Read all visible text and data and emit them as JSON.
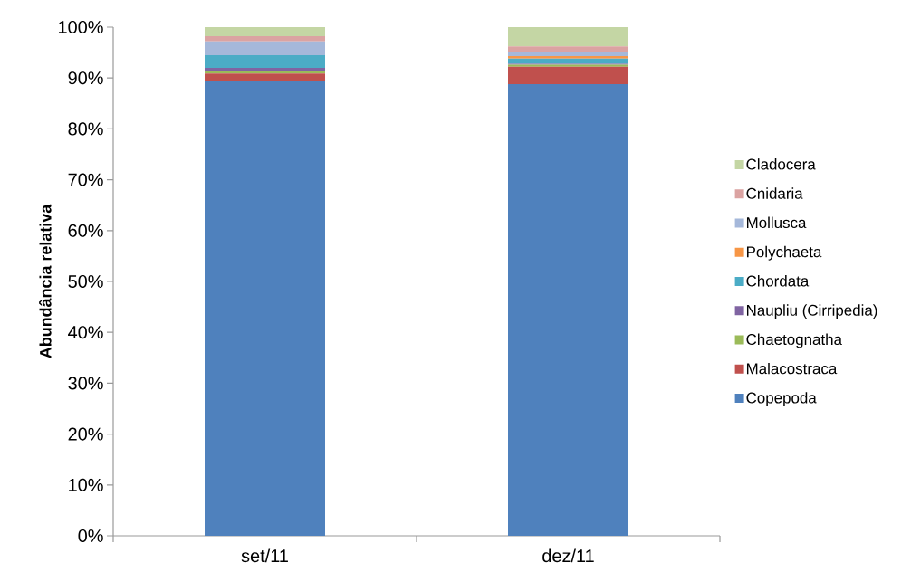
{
  "chart_data": {
    "type": "bar",
    "stacked": true,
    "ylabel": "Abundância relativa",
    "categories": [
      "set/11",
      "dez/11"
    ],
    "series": [
      {
        "name": "Copepoda",
        "color": "#4f81bd",
        "values": [
          89.5,
          88.8
        ]
      },
      {
        "name": "Malacostraca",
        "color": "#c0504d",
        "values": [
          1.4,
          3.4
        ]
      },
      {
        "name": "Chaetognatha",
        "color": "#9bbb59",
        "values": [
          0.4,
          0.4
        ]
      },
      {
        "name": "Naupliu (Cirripedia)",
        "color": "#8064a2",
        "values": [
          0.7,
          0.2
        ]
      },
      {
        "name": "Chordata",
        "color": "#4bacc6",
        "values": [
          2.5,
          1.0
        ]
      },
      {
        "name": "Polychaeta",
        "color": "#f79646",
        "values": [
          0,
          0.5
        ]
      },
      {
        "name": "Mollusca",
        "color": "#a5b8da",
        "values": [
          2.7,
          0.8
        ]
      },
      {
        "name": "Cnidaria",
        "color": "#dba3a2",
        "values": [
          1.0,
          1.1
        ]
      },
      {
        "name": "Cladocera",
        "color": "#c4d6a4",
        "values": [
          1.8,
          3.8
        ]
      }
    ],
    "ylim": [
      0,
      100
    ],
    "yticks": [
      {
        "value": 0,
        "label": "0%"
      },
      {
        "value": 10,
        "label": "10%"
      },
      {
        "value": 20,
        "label": "20%"
      },
      {
        "value": 30,
        "label": "30%"
      },
      {
        "value": 40,
        "label": "40%"
      },
      {
        "value": 50,
        "label": "50%"
      },
      {
        "value": 60,
        "label": "60%"
      },
      {
        "value": 70,
        "label": "70%"
      },
      {
        "value": 80,
        "label": "80%"
      },
      {
        "value": 90,
        "label": "90%"
      },
      {
        "value": 100,
        "label": "100%"
      }
    ],
    "legend": "right",
    "grid": false
  }
}
